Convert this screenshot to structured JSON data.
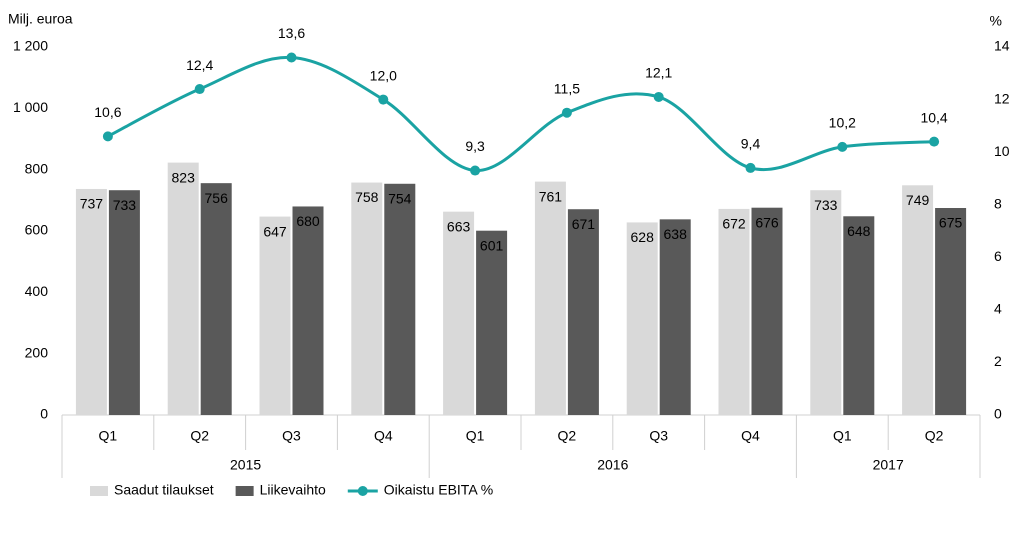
{
  "chart_data": {
    "type": "bar-line",
    "y_axis_label": "Milj. euroa",
    "y2_axis_label": "%",
    "categories": [
      "Q1",
      "Q2",
      "Q3",
      "Q4",
      "Q1",
      "Q2",
      "Q3",
      "Q4",
      "Q1",
      "Q2"
    ],
    "category_groups": [
      "2015",
      null,
      null,
      null,
      "2016",
      null,
      null,
      null,
      "2017",
      null
    ],
    "series": [
      {
        "name": "Saadut tilaukset",
        "type": "bar",
        "color": "#d9d9d9",
        "values": [
          737,
          823,
          647,
          758,
          663,
          761,
          628,
          672,
          733,
          749
        ]
      },
      {
        "name": "Liikevaihto",
        "type": "bar",
        "color": "#595959",
        "values": [
          733,
          756,
          680,
          754,
          601,
          671,
          638,
          676,
          648,
          675
        ]
      },
      {
        "name": "Oikaistu EBITA %",
        "type": "line",
        "axis": "y2",
        "color": "#1aa3a3",
        "values": [
          10.6,
          12.4,
          13.6,
          12.0,
          9.3,
          11.5,
          12.1,
          9.4,
          10.2,
          10.4
        ],
        "value_labels": [
          "10,6",
          "12,4",
          "13,6",
          "12,0",
          "9,3",
          "11,5",
          "12,1",
          "9,4",
          "10,2",
          "10,4"
        ]
      }
    ],
    "ylim": [
      0,
      1200
    ],
    "yticks": [
      0,
      200,
      400,
      600,
      800,
      {
        "value": 1000,
        "label": "1 000"
      },
      {
        "value": 1200,
        "label": "1 200"
      }
    ],
    "y2lim": [
      0,
      14
    ],
    "y2ticks": [
      0,
      2,
      4,
      6,
      8,
      10,
      12,
      14
    ],
    "grid": false
  }
}
